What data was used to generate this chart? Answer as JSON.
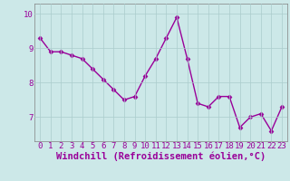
{
  "x": [
    0,
    1,
    2,
    3,
    4,
    5,
    6,
    7,
    8,
    9,
    10,
    11,
    12,
    13,
    14,
    15,
    16,
    17,
    18,
    19,
    20,
    21,
    22,
    23
  ],
  "y": [
    9.3,
    8.9,
    8.9,
    8.8,
    8.7,
    8.4,
    8.1,
    7.8,
    7.5,
    7.6,
    8.2,
    8.7,
    9.3,
    9.9,
    8.7,
    7.4,
    7.3,
    7.6,
    7.6,
    6.7,
    7.0,
    7.1,
    6.6,
    7.3
  ],
  "xlabel": "Windchill (Refroidissement éolien,°C)",
  "bg_color": "#cce8e8",
  "line_color": "#990099",
  "marker_color": "#990099",
  "grid_color": "#aacccc",
  "tick_label_color": "#990099",
  "xlabel_color": "#990099",
  "ylim": [
    6.3,
    10.3
  ],
  "xlim": [
    -0.5,
    23.5
  ],
  "yticks": [
    7,
    8,
    9,
    10
  ],
  "xticks": [
    0,
    1,
    2,
    3,
    4,
    5,
    6,
    7,
    8,
    9,
    10,
    11,
    12,
    13,
    14,
    15,
    16,
    17,
    18,
    19,
    20,
    21,
    22,
    23
  ],
  "xtick_labels": [
    "0",
    "1",
    "2",
    "3",
    "4",
    "5",
    "6",
    "7",
    "8",
    "9",
    "10",
    "11",
    "12",
    "13",
    "14",
    "15",
    "16",
    "17",
    "18",
    "19",
    "20",
    "21",
    "22",
    "23"
  ],
  "xlabel_fontsize": 7.5,
  "tick_fontsize": 6.5,
  "line_width": 1.0,
  "marker_size": 2.5,
  "spine_color": "#808080"
}
